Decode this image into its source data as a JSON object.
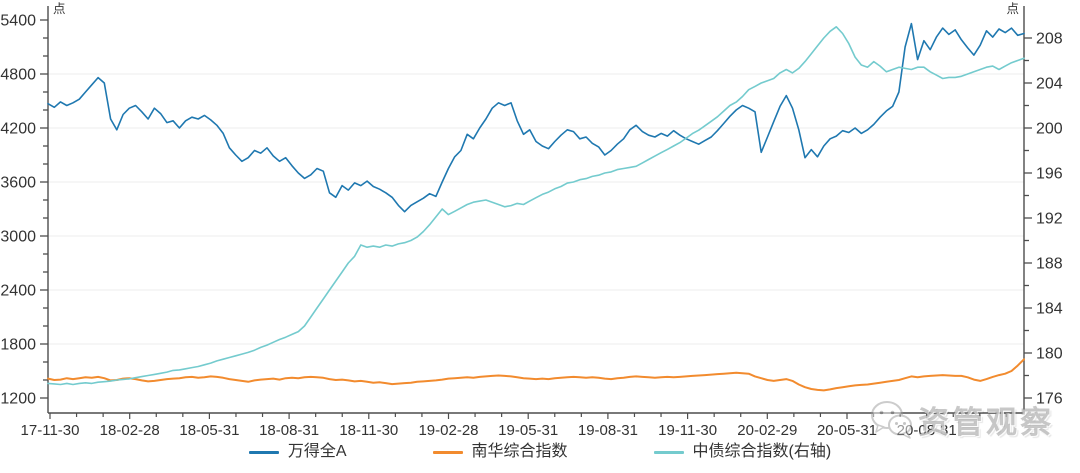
{
  "chart_data": {
    "type": "line",
    "title": "",
    "unit_left": "点",
    "unit_right": "点",
    "grid": "horizontal-majors",
    "legend_position": "bottom",
    "x_tick_labels": [
      "17-11-30",
      "18-02-28",
      "18-05-31",
      "18-08-31",
      "18-11-30",
      "19-02-28",
      "19-05-31",
      "19-08-31",
      "19-11-30",
      "20-02-29",
      "20-05-31",
      "20-08-31"
    ],
    "left_axis": {
      "min": 1200,
      "max": 5400,
      "major_step": 600,
      "minor_step": 200
    },
    "right_axis": {
      "min": 176,
      "max": 208,
      "major_step": 4,
      "minor_step": 2
    },
    "series": [
      {
        "name": "万得全A",
        "axis": "left",
        "color": "#1f78b0",
        "values": [
          4470,
          4430,
          4490,
          4450,
          4480,
          4520,
          4600,
          4680,
          4760,
          4700,
          4300,
          4180,
          4350,
          4420,
          4450,
          4380,
          4300,
          4420,
          4360,
          4260,
          4280,
          4200,
          4280,
          4320,
          4300,
          4340,
          4290,
          4230,
          4140,
          3980,
          3900,
          3830,
          3870,
          3950,
          3920,
          3980,
          3890,
          3830,
          3870,
          3780,
          3700,
          3640,
          3680,
          3750,
          3720,
          3480,
          3430,
          3560,
          3510,
          3590,
          3560,
          3610,
          3550,
          3520,
          3480,
          3430,
          3340,
          3270,
          3340,
          3380,
          3420,
          3470,
          3440,
          3600,
          3750,
          3880,
          3950,
          4130,
          4080,
          4200,
          4300,
          4420,
          4480,
          4450,
          4480,
          4280,
          4130,
          4180,
          4050,
          4000,
          3970,
          4050,
          4120,
          4180,
          4160,
          4080,
          4100,
          4030,
          3990,
          3900,
          3950,
          4020,
          4080,
          4180,
          4230,
          4160,
          4120,
          4100,
          4140,
          4110,
          4170,
          4120,
          4080,
          4050,
          4020,
          4060,
          4100,
          4170,
          4250,
          4330,
          4400,
          4450,
          4420,
          4380,
          3930,
          4100,
          4270,
          4440,
          4560,
          4420,
          4180,
          3870,
          3960,
          3880,
          4000,
          4080,
          4110,
          4170,
          4150,
          4200,
          4140,
          4180,
          4240,
          4320,
          4390,
          4440,
          4600,
          5100,
          5360,
          4960,
          5170,
          5070,
          5210,
          5310,
          5240,
          5290,
          5180,
          5090,
          5010,
          5120,
          5280,
          5210,
          5300,
          5260,
          5310,
          5230,
          5250
        ]
      },
      {
        "name": "南华综合指数",
        "axis": "left",
        "color": "#f28b2e",
        "values": [
          1415,
          1400,
          1405,
          1420,
          1410,
          1420,
          1430,
          1425,
          1435,
          1420,
          1395,
          1400,
          1415,
          1420,
          1410,
          1395,
          1385,
          1390,
          1400,
          1410,
          1415,
          1420,
          1430,
          1435,
          1425,
          1430,
          1440,
          1435,
          1425,
          1410,
          1400,
          1390,
          1380,
          1395,
          1405,
          1410,
          1415,
          1405,
          1420,
          1425,
          1420,
          1430,
          1435,
          1430,
          1425,
          1410,
          1400,
          1405,
          1395,
          1385,
          1390,
          1380,
          1370,
          1375,
          1365,
          1355,
          1360,
          1365,
          1370,
          1380,
          1385,
          1390,
          1395,
          1405,
          1415,
          1420,
          1425,
          1430,
          1425,
          1435,
          1440,
          1445,
          1450,
          1445,
          1440,
          1430,
          1420,
          1415,
          1410,
          1415,
          1410,
          1420,
          1425,
          1430,
          1435,
          1430,
          1425,
          1430,
          1425,
          1415,
          1410,
          1420,
          1425,
          1435,
          1440,
          1435,
          1430,
          1425,
          1430,
          1435,
          1430,
          1435,
          1440,
          1445,
          1450,
          1455,
          1460,
          1465,
          1470,
          1475,
          1480,
          1475,
          1470,
          1440,
          1420,
          1400,
          1390,
          1400,
          1410,
          1390,
          1350,
          1320,
          1300,
          1290,
          1285,
          1295,
          1310,
          1320,
          1330,
          1340,
          1345,
          1350,
          1360,
          1370,
          1380,
          1390,
          1400,
          1420,
          1440,
          1430,
          1440,
          1445,
          1450,
          1455,
          1450,
          1445,
          1445,
          1430,
          1405,
          1390,
          1410,
          1435,
          1455,
          1470,
          1500,
          1560,
          1630
        ]
      },
      {
        "name": "中债综合指数(右轴)",
        "axis": "right",
        "color": "#74cbce",
        "values": [
          177.3,
          177.25,
          177.2,
          177.3,
          177.2,
          177.3,
          177.35,
          177.3,
          177.4,
          177.45,
          177.5,
          177.6,
          177.65,
          177.7,
          177.8,
          177.9,
          178.0,
          178.1,
          178.2,
          178.3,
          178.45,
          178.5,
          178.6,
          178.7,
          178.8,
          178.95,
          179.1,
          179.3,
          179.45,
          179.6,
          179.75,
          179.9,
          180.05,
          180.25,
          180.5,
          180.7,
          180.95,
          181.2,
          181.4,
          181.65,
          181.9,
          182.4,
          183.2,
          184.0,
          184.8,
          185.6,
          186.4,
          187.2,
          188.0,
          188.6,
          189.6,
          189.4,
          189.5,
          189.4,
          189.6,
          189.5,
          189.7,
          189.8,
          190.0,
          190.3,
          190.8,
          191.4,
          192.1,
          192.8,
          192.3,
          192.6,
          192.9,
          193.2,
          193.4,
          193.5,
          193.6,
          193.4,
          193.2,
          193.0,
          193.1,
          193.3,
          193.2,
          193.5,
          193.8,
          194.1,
          194.3,
          194.6,
          194.8,
          195.1,
          195.2,
          195.4,
          195.5,
          195.7,
          195.8,
          196.0,
          196.1,
          196.3,
          196.4,
          196.5,
          196.6,
          196.9,
          197.2,
          197.5,
          197.8,
          198.1,
          198.4,
          198.7,
          199.1,
          199.5,
          199.8,
          200.2,
          200.6,
          201.0,
          201.5,
          202.0,
          202.3,
          202.8,
          203.4,
          203.7,
          204.0,
          204.2,
          204.4,
          204.9,
          205.2,
          204.9,
          205.3,
          205.9,
          206.6,
          207.3,
          208.0,
          208.6,
          209.0,
          208.4,
          207.5,
          206.3,
          205.6,
          205.4,
          205.9,
          205.5,
          205.0,
          205.2,
          205.4,
          205.3,
          205.2,
          205.4,
          205.4,
          205.0,
          204.7,
          204.4,
          204.5,
          204.5,
          204.6,
          204.8,
          205.0,
          205.2,
          205.4,
          205.5,
          205.2,
          205.5,
          205.8,
          206.0,
          206.2
        ]
      }
    ]
  },
  "watermark": {
    "text": "资管观察",
    "icon": "wechat-icon"
  },
  "style": {
    "axis_color": "#4d4d4d",
    "label_color": "#333333",
    "grid_color": "#ededed"
  }
}
